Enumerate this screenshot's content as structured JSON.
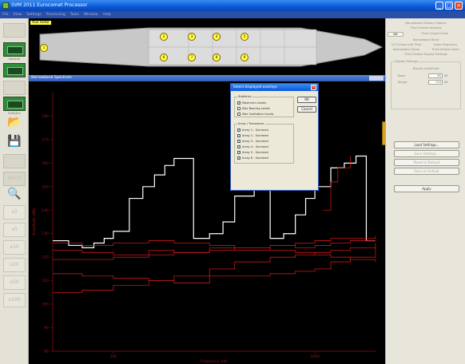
{
  "window": {
    "title": "SVM 2011 Eurocomet Processor",
    "buttons": [
      "_",
      "□",
      "×"
    ]
  },
  "menu": [
    "File",
    "View",
    "Settings",
    "Processing",
    "Tools",
    "Window",
    "Help"
  ],
  "left_toolbar": {
    "labels": [
      "Spectral",
      "Statistics"
    ],
    "zoom": [
      "x2",
      "x5",
      "x10",
      "x20",
      "x50",
      "x100"
    ],
    "disabled_button": "AUTO"
  },
  "vessel": {
    "label": "Aux Rotor",
    "sensors": [
      "1",
      "2",
      "3",
      "4",
      "5",
      "6",
      "7",
      "8",
      "9"
    ]
  },
  "plot_window": {
    "title": "Narrowband Spectrum"
  },
  "chart_data": {
    "type": "line",
    "title": "",
    "xlabel": "Frequency (Hz)",
    "ylabel": "Amplitude (dB)",
    "xscale": "log",
    "xlim": [
      50,
      2000
    ],
    "ylim": [
      80,
      190
    ],
    "yticks": [
      80,
      90,
      100,
      110,
      120,
      130,
      140,
      150,
      160,
      170,
      180
    ],
    "xticks": [
      100,
      1000
    ],
    "grid": false,
    "series": [
      {
        "color": "#ffffff",
        "x": [
          50,
          60,
          70,
          80,
          90,
          100,
          120,
          140,
          160,
          180,
          200,
          250,
          300,
          350,
          400,
          500,
          600,
          700,
          800,
          900,
          1000,
          1100,
          1200,
          1400,
          1600,
          1800,
          2000
        ],
        "values": [
          127,
          125,
          124,
          126,
          128,
          131,
          145,
          150,
          155,
          159,
          162,
          128,
          130,
          135,
          146,
          152,
          128,
          130,
          138,
          145,
          150,
          150,
          158,
          160,
          163,
          127,
          127
        ]
      },
      {
        "color": "#c81818",
        "x": [
          50,
          70,
          100,
          150,
          200,
          300,
          400,
          600,
          800,
          1000,
          1200,
          1500,
          2000
        ],
        "values": [
          123,
          122,
          121,
          123,
          122,
          124,
          123,
          125,
          124,
          125,
          126,
          127,
          127
        ]
      },
      {
        "color": "#c81818",
        "x": [
          50,
          70,
          100,
          150,
          200,
          300,
          400,
          600,
          800,
          1000,
          1200,
          1500,
          2000
        ],
        "values": [
          119,
          119,
          120,
          121,
          122,
          123,
          124,
          125,
          126,
          127,
          128,
          128,
          129
        ]
      },
      {
        "color": "#c81818",
        "x": [
          50,
          70,
          100,
          150,
          200,
          300,
          400,
          600,
          800,
          1000,
          1200,
          1500,
          2000
        ],
        "values": [
          113,
          112,
          111,
          110,
          109,
          112,
          112,
          113,
          114,
          115,
          118,
          120,
          124
        ]
      },
      {
        "color": "#c81818",
        "x": [
          50,
          70,
          100,
          150,
          200,
          300,
          400,
          600,
          800,
          1000,
          1200,
          1500,
          2000
        ],
        "values": [
          105,
          106,
          108,
          110,
          112,
          115,
          118,
          120,
          121,
          122,
          123,
          124,
          126
        ]
      },
      {
        "color": "#c81818",
        "x": [
          50,
          70,
          100,
          150,
          200,
          300,
          400,
          600,
          800,
          1000,
          1200,
          1500,
          2000
        ],
        "values": [
          126,
          125,
          126,
          127,
          126,
          125,
          124,
          123,
          122,
          121,
          120,
          119,
          118
        ]
      },
      {
        "color": "#c81818",
        "x": [
          1100,
          1200,
          1300,
          1500
        ],
        "values": [
          140,
          152,
          158,
          163
        ]
      }
    ]
  },
  "dialog": {
    "title": "Select displayed overlays",
    "group1_title": "Statistics",
    "group1_items": [
      {
        "label": "Maximum Levels",
        "checked": true
      },
      {
        "label": "Max Bearing Levels",
        "checked": false
      },
      {
        "label": "Max Cavitation Levels",
        "checked": false
      }
    ],
    "group2_title": "Array / Transducer",
    "group2_items": [
      {
        "label": "Array 1 - Summed",
        "checked": true
      },
      {
        "label": "Array 2 - Summed",
        "checked": true
      },
      {
        "label": "Array 3 - Summed",
        "checked": true
      },
      {
        "label": "Array 4 - Summed",
        "checked": true
      },
      {
        "label": "Array 5 - Summed",
        "checked": true
      },
      {
        "label": "Array 6 - Summed",
        "checked": true
      }
    ],
    "ok_label": "OK",
    "cancel_label": "Cancel"
  },
  "right_panel": {
    "header_lines": [
      "Narrowband Display Options",
      "Third Octave Analysis"
    ],
    "tabs": [
      "NB",
      "Third Octave Scale"
    ],
    "info_lines": [
      "Narrowband Band",
      "1/3 Octave and Time",
      "Scale Frequency",
      "Narrowband Zoom",
      "Third Octave Zoom",
      "Third Octave Display Settings"
    ],
    "group_title": "Display Settings",
    "subgroup_label": "Display Amplitude",
    "fields": [
      {
        "label": "Base:",
        "value": "80",
        "unit": "dB"
      },
      {
        "label": "Range:",
        "value": "110",
        "unit": "dB"
      }
    ],
    "buttons": [
      {
        "label": "Load Settings...",
        "enabled": true
      },
      {
        "label": "Save Settings...",
        "enabled": false
      },
      {
        "label": "Reset to Default",
        "enabled": false
      },
      {
        "label": "Save as Default",
        "enabled": false
      },
      {
        "label": "Apply",
        "enabled": true
      }
    ]
  }
}
